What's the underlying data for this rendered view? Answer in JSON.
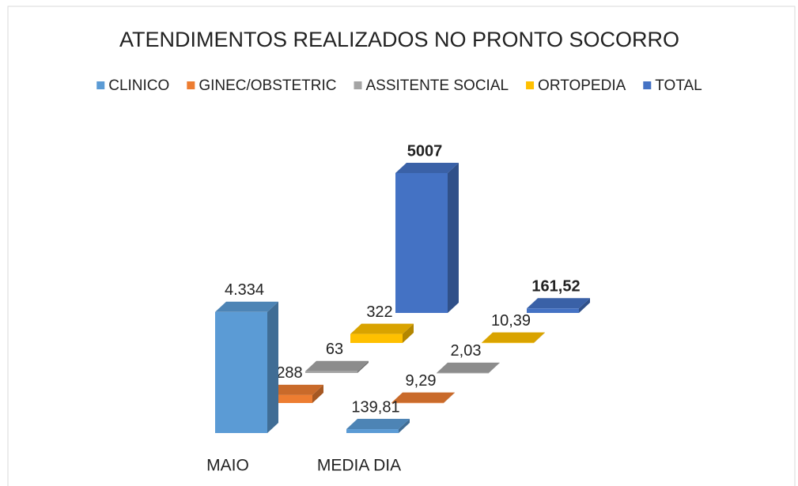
{
  "chart_data": {
    "type": "bar3d",
    "title": "ATENDIMENTOS REALIZADOS NO PRONTO SOCORRO",
    "categories": [
      "MAIO",
      "MEDIA DIA"
    ],
    "series": [
      {
        "name": "CLINICO",
        "color": "#5b9bd5",
        "values": [
          4334,
          139.81
        ],
        "value_labels": [
          "4.334",
          "139,81"
        ]
      },
      {
        "name": "GINEC/OBSTETRIC",
        "color": "#ed7d31",
        "values": [
          288,
          9.29
        ],
        "value_labels": [
          "288",
          "9,29"
        ]
      },
      {
        "name": "ASSITENTE SOCIAL",
        "color": "#a5a5a5",
        "values": [
          63,
          2.03
        ],
        "value_labels": [
          "63",
          "2,03"
        ]
      },
      {
        "name": "ORTOPEDIA",
        "color": "#ffc000",
        "values": [
          322,
          10.39
        ],
        "value_labels": [
          "322",
          "10,39"
        ]
      },
      {
        "name": "TOTAL",
        "color": "#4472c4",
        "values": [
          5007,
          161.52
        ],
        "value_labels": [
          "5007",
          "161,52"
        ]
      }
    ]
  }
}
